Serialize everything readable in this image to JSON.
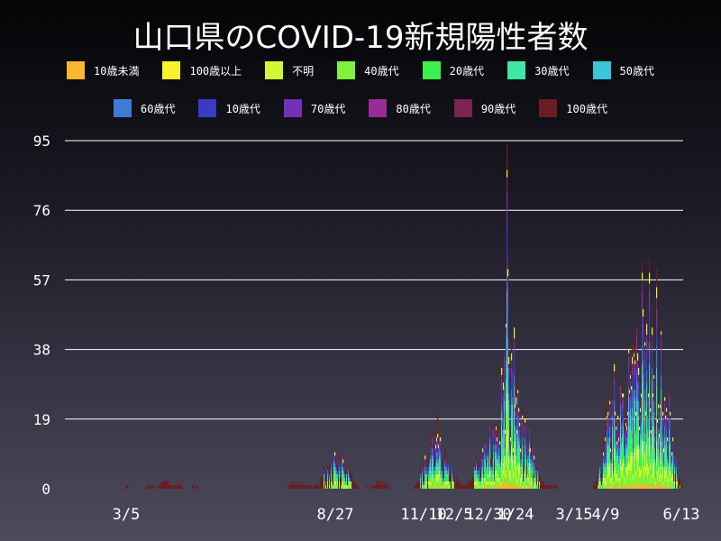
{
  "chart_data": {
    "type": "bar",
    "stacked": true,
    "title": "山口県のCOVID-19新規陽性者数",
    "xlabel": "",
    "ylabel": "",
    "ylim": [
      0,
      95
    ],
    "y_ticks": [
      0,
      19,
      38,
      57,
      76,
      95
    ],
    "x_tick_labels": [
      "3/5",
      "8/27",
      "11/10",
      "12/5",
      "12/30",
      "1/24",
      "3/15",
      "4/9",
      "6/13"
    ],
    "grid": true,
    "legend_position": "top",
    "series": [
      {
        "name": "10歳未満",
        "color": "#fbb72b"
      },
      {
        "name": "100歳以上",
        "color": "#f7f22c"
      },
      {
        "name": "不明",
        "color": "#d3f735"
      },
      {
        "name": "40歳代",
        "color": "#7ef33a"
      },
      {
        "name": "20歳代",
        "color": "#3df14f"
      },
      {
        "name": "30歳代",
        "color": "#3ce8a3"
      },
      {
        "name": "50歳代",
        "color": "#38c6d8"
      },
      {
        "name": "60歳代",
        "color": "#3d7bd6"
      },
      {
        "name": "10歳代",
        "color": "#3b3ac6"
      },
      {
        "name": "70歳代",
        "color": "#7232b8"
      },
      {
        "name": "80歳代",
        "color": "#9a2c96"
      },
      {
        "name": "90歳代",
        "color": "#7e2256"
      },
      {
        "name": "100歳代",
        "color": "#6a1e22"
      }
    ],
    "daily_totals_approx": [
      {
        "x": "3/5",
        "y": 1
      },
      {
        "x": "8/27",
        "y": 13
      },
      {
        "x": "11/10",
        "y": 6
      },
      {
        "x": "12/5",
        "y": 22
      },
      {
        "x": "12/30",
        "y": 20
      },
      {
        "x": "1/24",
        "y": 94
      },
      {
        "x": "3/15",
        "y": 2
      },
      {
        "x": "4/9",
        "y": 35
      },
      {
        "x": "6/13",
        "y": 15
      }
    ],
    "peak_a": 94,
    "peak_b": 63
  }
}
